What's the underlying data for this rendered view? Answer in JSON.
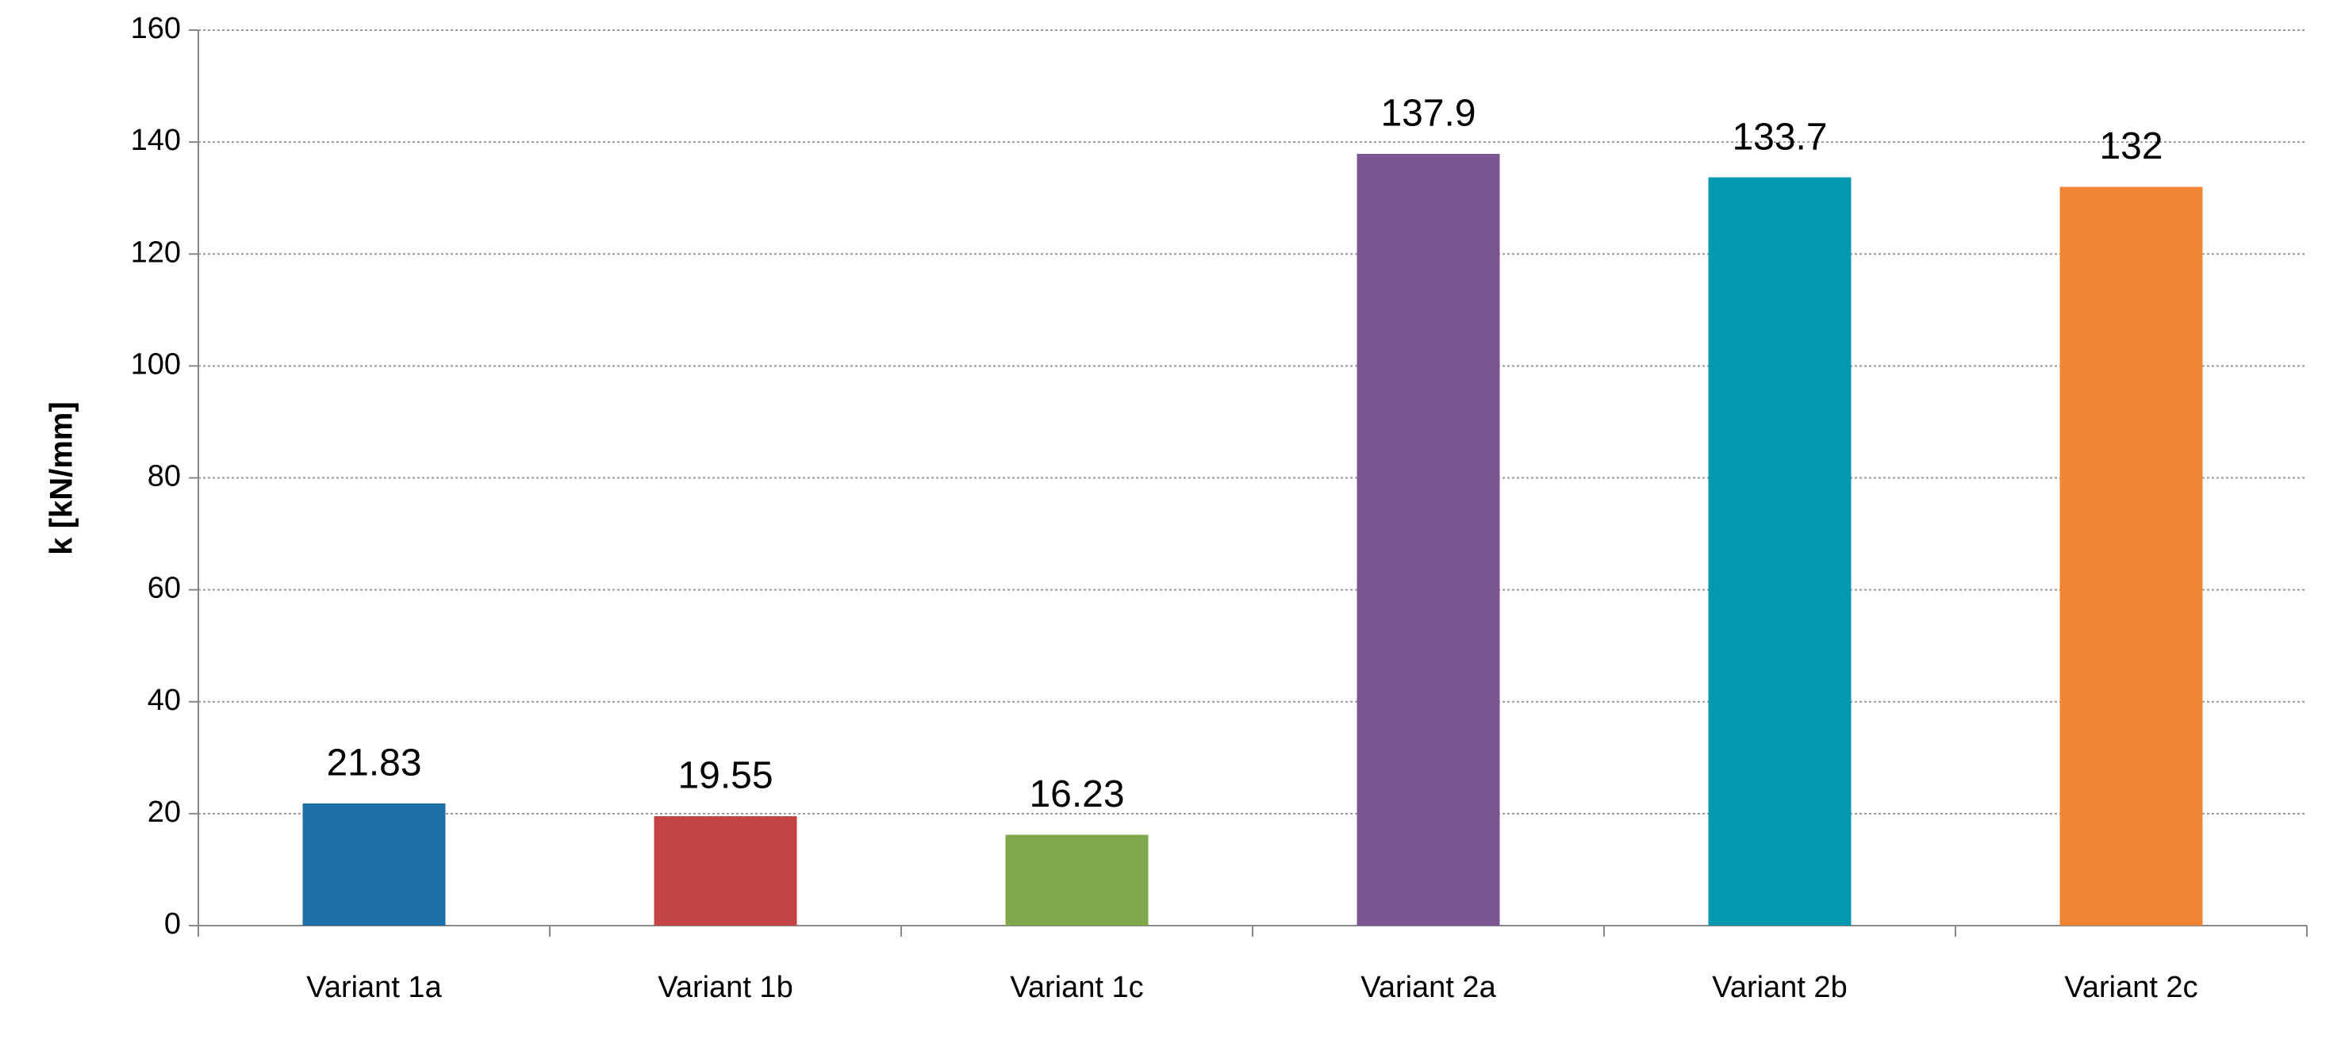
{
  "chart_data": {
    "type": "bar",
    "ylabel": "k [kN/mm]",
    "categories": [
      "Variant 1a",
      "Variant 1b",
      "Variant 1c",
      "Variant 2a",
      "Variant 2b",
      "Variant 2c"
    ],
    "values": [
      21.83,
      19.55,
      16.23,
      137.9,
      133.7,
      132
    ],
    "colors": [
      "#1f6fa8",
      "#c44444",
      "#7ea84a",
      "#7b5592",
      "#0198b0",
      "#f08535"
    ],
    "ylim": [
      0,
      160
    ],
    "yticks": [
      0,
      20,
      40,
      60,
      80,
      100,
      120,
      140,
      160
    ],
    "grid": true
  }
}
